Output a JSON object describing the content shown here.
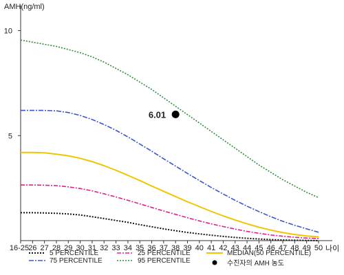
{
  "chart_data": {
    "type": "line",
    "ylabel": "AMH(ng/ml)",
    "xlabel": "나이",
    "ylim": [
      0,
      11
    ],
    "y_ticks": [
      5,
      10
    ],
    "y_tick_labels": [
      "5",
      "10"
    ],
    "categories": [
      "16-25",
      "26",
      "27",
      "28",
      "29",
      "30",
      "31",
      "32",
      "33",
      "34",
      "35",
      "36",
      "37",
      "38",
      "39",
      "40",
      "41",
      "42",
      "43",
      "44",
      "45",
      "46",
      "47",
      "48",
      "49",
      "50"
    ],
    "series": [
      {
        "name": "5 PERCENTILE",
        "color": "#111111",
        "values": [
          1.33,
          1.33,
          1.32,
          1.3,
          1.27,
          1.22,
          1.14,
          1.05,
          0.96,
          0.87,
          0.76,
          0.66,
          0.56,
          0.47,
          0.39,
          0.32,
          0.26,
          0.2,
          0.15,
          0.11,
          0.08,
          0.05,
          0.03,
          0.02,
          0.01,
          0.0
        ]
      },
      {
        "name": "25 PERCENTILE",
        "color": "#e0208a",
        "values": [
          2.65,
          2.65,
          2.64,
          2.62,
          2.56,
          2.48,
          2.37,
          2.23,
          2.08,
          1.92,
          1.75,
          1.58,
          1.41,
          1.25,
          1.09,
          0.94,
          0.8,
          0.67,
          0.55,
          0.44,
          0.35,
          0.27,
          0.21,
          0.16,
          0.12,
          0.1
        ]
      },
      {
        "name": "MEDIAN(50 PERCENTILE)",
        "color": "#f2c400",
        "values": [
          4.2,
          4.2,
          4.18,
          4.12,
          4.04,
          3.92,
          3.76,
          3.57,
          3.35,
          3.11,
          2.86,
          2.6,
          2.35,
          2.1,
          1.85,
          1.62,
          1.39,
          1.18,
          0.98,
          0.8,
          0.64,
          0.5,
          0.38,
          0.29,
          0.22,
          0.18
        ]
      },
      {
        "name": "75 PERCENTILE",
        "color": "#3a56c4",
        "values": [
          6.2,
          6.2,
          6.2,
          6.18,
          6.1,
          5.96,
          5.77,
          5.53,
          5.25,
          4.94,
          4.6,
          4.26,
          3.9,
          3.55,
          3.2,
          2.86,
          2.53,
          2.22,
          1.92,
          1.64,
          1.38,
          1.14,
          0.92,
          0.73,
          0.56,
          0.4
        ]
      },
      {
        "name": "95 PERCENTILE",
        "color": "#2e8b3a",
        "values": [
          9.55,
          9.45,
          9.35,
          9.25,
          9.1,
          8.95,
          8.75,
          8.5,
          8.2,
          7.9,
          7.55,
          7.2,
          6.8,
          6.4,
          6.0,
          5.6,
          5.2,
          4.8,
          4.4,
          4.0,
          3.6,
          3.25,
          2.9,
          2.6,
          2.3,
          2.05
        ]
      }
    ],
    "point": {
      "name": "수진자의 AMH 농도",
      "x": "38",
      "y": 6.01,
      "label": "6.01",
      "color": "#000000"
    },
    "legend_position": "bottom"
  }
}
